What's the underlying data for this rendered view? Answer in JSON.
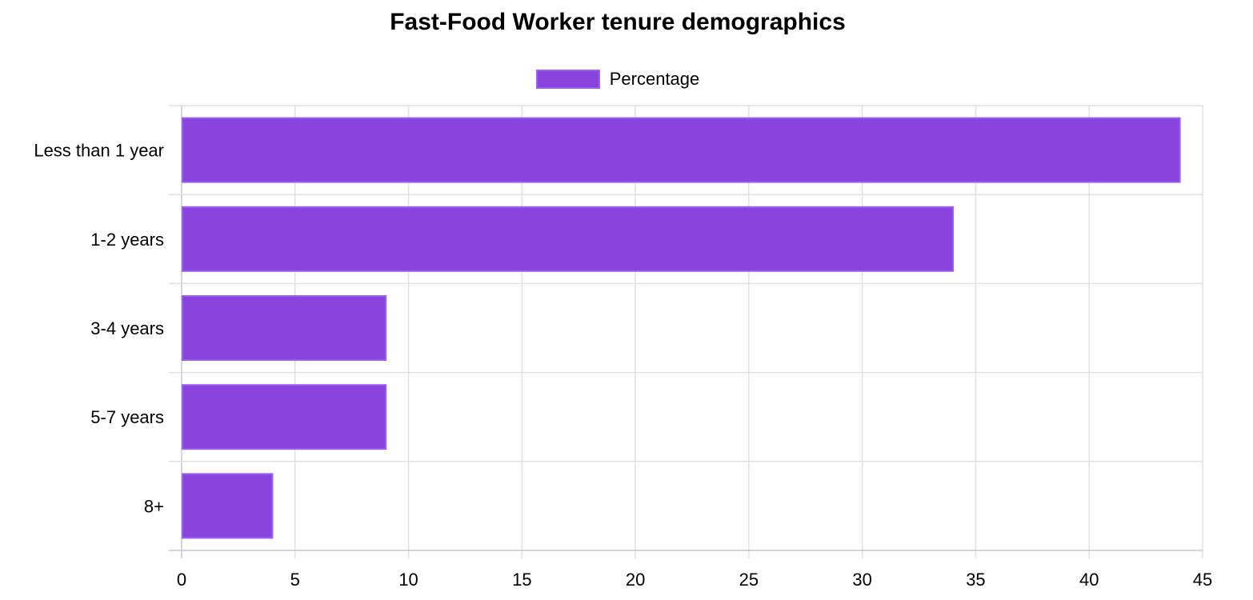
{
  "chart_data": {
    "type": "bar",
    "orientation": "horizontal",
    "title": "Fast-Food Worker tenure demographics",
    "categories": [
      "Less than 1 year",
      "1-2 years",
      "3-4 years",
      "5-7 years",
      "8+"
    ],
    "series": [
      {
        "name": "Percentage",
        "values": [
          44,
          34,
          9,
          9,
          4
        ]
      }
    ],
    "xlim": [
      0,
      45
    ],
    "x_ticks": [
      "0",
      "5",
      "10",
      "15",
      "20",
      "25",
      "30",
      "35",
      "40",
      "45"
    ],
    "grid": true,
    "legend_position": "top",
    "colors": {
      "bar_fill": "#8844dd",
      "bar_border": "#9b5ff0",
      "grid": "#e1e1e1",
      "axis": "#c8c8c8"
    }
  }
}
